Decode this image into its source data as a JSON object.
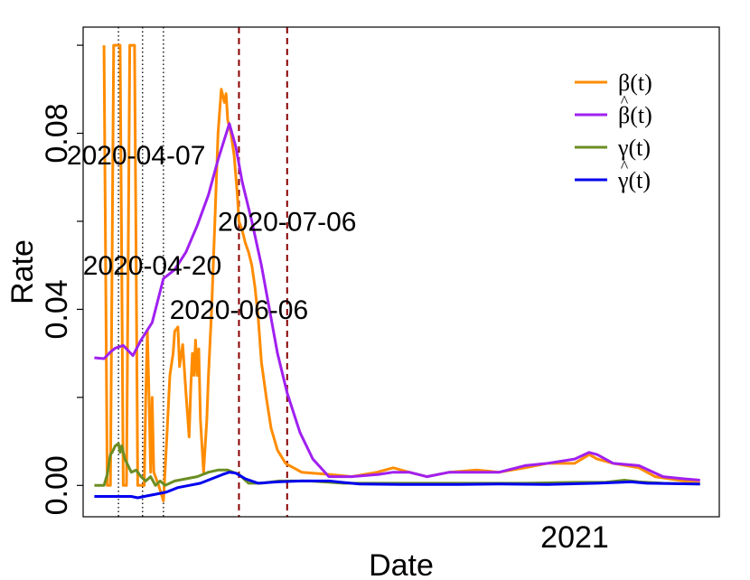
{
  "chart_data": {
    "type": "line",
    "xlabel": "Date",
    "ylabel": "Rate",
    "xlim": [
      "2020-03-01",
      "2021-04-01"
    ],
    "ylim": [
      -0.003,
      0.1
    ],
    "x_tick_labels": [
      {
        "date": "2021-01-01",
        "label": "2021"
      }
    ],
    "y_ticks": [
      0.0,
      0.04,
      0.08
    ],
    "y_tick_labels": [
      "0.00",
      "0.04",
      "0.08"
    ],
    "y_minor_ticks": [
      0.02,
      0.06,
      0.1
    ],
    "grid": false,
    "legend": {
      "position": "top-right",
      "entries": [
        {
          "label": "β(t)",
          "hat": false,
          "color": "#FF8C00"
        },
        {
          "label": "β(t)",
          "hat": true,
          "color": "#A020F0"
        },
        {
          "label": "γ(t)",
          "hat": false,
          "color": "#6B8E23"
        },
        {
          "label": "γ(t)",
          "hat": true,
          "color": "#0000EE"
        }
      ]
    },
    "vlines": [
      {
        "date": "2020-03-23",
        "color": "#000000",
        "style": "dotted"
      },
      {
        "date": "2020-04-07",
        "color": "#000000",
        "style": "dotted"
      },
      {
        "date": "2020-04-20",
        "color": "#000000",
        "style": "dotted"
      },
      {
        "date": "2020-06-06",
        "color": "#8B0000",
        "style": "dashed"
      },
      {
        "date": "2020-07-06",
        "color": "#8B0000",
        "style": "dashed"
      }
    ],
    "annotations": [
      {
        "text": "2020-04-07",
        "date": "2020-04-03",
        "value": 0.0745,
        "color": "#000000"
      },
      {
        "text": "2020-04-20",
        "date": "2020-04-13",
        "value": 0.0495,
        "color": "#000000"
      },
      {
        "text": "2020-07-06",
        "date": "2020-07-06",
        "value": 0.0595,
        "color": "#8B0000"
      },
      {
        "text": "2020-06-06",
        "date": "2020-06-06",
        "value": 0.0395,
        "color": "#8B0000"
      }
    ],
    "series": [
      {
        "color": "#FF8C00",
        "width": 3,
        "points": [
          [
            "2020-03-14",
            0.1
          ],
          [
            "2020-03-15",
            0.05
          ],
          [
            "2020-03-16",
            0.0
          ],
          [
            "2020-03-18",
            0.0
          ],
          [
            "2020-03-19",
            0.05
          ],
          [
            "2020-03-20",
            0.1
          ],
          [
            "2020-03-24",
            0.1
          ],
          [
            "2020-03-25",
            0.05
          ],
          [
            "2020-03-26",
            0.0
          ],
          [
            "2020-03-28",
            0.0
          ],
          [
            "2020-03-29",
            0.05
          ],
          [
            "2020-03-30",
            0.1
          ],
          [
            "2020-04-02",
            0.1
          ],
          [
            "2020-04-03",
            0.05
          ],
          [
            "2020-04-04",
            0.0
          ],
          [
            "2020-04-08",
            0.0
          ],
          [
            "2020-04-09",
            0.02
          ],
          [
            "2020-04-10",
            0.035
          ],
          [
            "2020-04-11",
            0.02
          ],
          [
            "2020-04-12",
            0.003
          ],
          [
            "2020-04-13",
            0.02
          ],
          [
            "2020-04-14",
            0.003
          ],
          [
            "2020-04-17",
            0.0
          ],
          [
            "2020-04-20",
            -0.0035
          ],
          [
            "2020-04-22",
            0.01
          ],
          [
            "2020-04-24",
            0.025
          ],
          [
            "2020-04-26",
            0.03
          ],
          [
            "2020-04-27",
            0.035
          ],
          [
            "2020-04-29",
            0.036
          ],
          [
            "2020-04-30",
            0.027
          ],
          [
            "2020-05-02",
            0.032
          ],
          [
            "2020-05-04",
            0.021
          ],
          [
            "2020-05-06",
            0.011
          ],
          [
            "2020-05-07",
            0.022
          ],
          [
            "2020-05-08",
            0.03
          ],
          [
            "2020-05-09",
            0.025
          ],
          [
            "2020-05-10",
            0.033
          ],
          [
            "2020-05-11",
            0.025
          ],
          [
            "2020-05-12",
            0.031
          ],
          [
            "2020-05-13",
            0.015
          ],
          [
            "2020-05-15",
            0.003
          ],
          [
            "2020-05-17",
            0.015
          ],
          [
            "2020-05-18",
            0.025
          ],
          [
            "2020-05-20",
            0.04
          ],
          [
            "2020-05-22",
            0.06
          ],
          [
            "2020-05-24",
            0.08
          ],
          [
            "2020-05-26",
            0.09
          ],
          [
            "2020-05-28",
            0.087
          ],
          [
            "2020-05-29",
            0.089
          ],
          [
            "2020-05-30",
            0.083
          ],
          [
            "2020-06-01",
            0.08
          ],
          [
            "2020-06-03",
            0.075
          ],
          [
            "2020-06-05",
            0.066
          ],
          [
            "2020-06-06",
            0.06
          ],
          [
            "2020-06-08",
            0.058
          ],
          [
            "2020-06-10",
            0.055
          ],
          [
            "2020-06-12",
            0.053
          ],
          [
            "2020-06-14",
            0.05
          ],
          [
            "2020-06-16",
            0.045
          ],
          [
            "2020-06-18",
            0.038
          ],
          [
            "2020-06-20",
            0.028
          ],
          [
            "2020-06-23",
            0.02
          ],
          [
            "2020-06-26",
            0.013
          ],
          [
            "2020-06-30",
            0.008
          ],
          [
            "2020-07-05",
            0.005
          ],
          [
            "2020-07-15",
            0.003
          ],
          [
            "2020-08-01",
            0.0025
          ],
          [
            "2020-08-15",
            0.002
          ],
          [
            "2020-08-31",
            0.003
          ],
          [
            "2020-09-10",
            0.004
          ],
          [
            "2020-09-20",
            0.003
          ],
          [
            "2020-10-01",
            0.002
          ],
          [
            "2020-10-15",
            0.003
          ],
          [
            "2020-11-01",
            0.0035
          ],
          [
            "2020-11-15",
            0.003
          ],
          [
            "2020-12-01",
            0.004
          ],
          [
            "2020-12-15",
            0.005
          ],
          [
            "2021-01-01",
            0.005
          ],
          [
            "2021-01-10",
            0.007
          ],
          [
            "2021-01-15",
            0.006
          ],
          [
            "2021-01-25",
            0.005
          ],
          [
            "2021-02-10",
            0.004
          ],
          [
            "2021-02-20",
            0.002
          ],
          [
            "2021-03-10",
            0.001
          ],
          [
            "2021-03-20",
            0.001
          ]
        ]
      },
      {
        "color": "#A020F0",
        "width": 3,
        "points": [
          [
            "2020-03-08",
            0.029
          ],
          [
            "2020-03-14",
            0.0288
          ],
          [
            "2020-03-18",
            0.0303
          ],
          [
            "2020-03-21",
            0.0312
          ],
          [
            "2020-03-26",
            0.0318
          ],
          [
            "2020-04-01",
            0.0295
          ],
          [
            "2020-04-06",
            0.033
          ],
          [
            "2020-04-13",
            0.037
          ],
          [
            "2020-04-20",
            0.047
          ],
          [
            "2020-04-27",
            0.049
          ],
          [
            "2020-05-04",
            0.053
          ],
          [
            "2020-05-11",
            0.059
          ],
          [
            "2020-05-18",
            0.066
          ],
          [
            "2020-05-24",
            0.074
          ],
          [
            "2020-05-30",
            0.081
          ],
          [
            "2020-05-31",
            0.0822
          ],
          [
            "2020-06-04",
            0.077
          ],
          [
            "2020-06-08",
            0.069
          ],
          [
            "2020-06-14",
            0.06
          ],
          [
            "2020-06-20",
            0.05
          ],
          [
            "2020-06-25",
            0.04
          ],
          [
            "2020-06-30",
            0.03
          ],
          [
            "2020-07-06",
            0.021
          ],
          [
            "2020-07-14",
            0.012
          ],
          [
            "2020-07-22",
            0.006
          ],
          [
            "2020-08-01",
            0.002
          ],
          [
            "2020-08-15",
            0.002
          ],
          [
            "2020-09-01",
            0.0025
          ],
          [
            "2020-09-10",
            0.003
          ],
          [
            "2020-09-20",
            0.003
          ],
          [
            "2020-10-01",
            0.002
          ],
          [
            "2020-10-15",
            0.003
          ],
          [
            "2020-11-01",
            0.003
          ],
          [
            "2020-11-15",
            0.003
          ],
          [
            "2020-12-01",
            0.0045
          ],
          [
            "2020-12-15",
            0.005
          ],
          [
            "2021-01-01",
            0.006
          ],
          [
            "2021-01-10",
            0.0075
          ],
          [
            "2021-01-15",
            0.007
          ],
          [
            "2021-01-25",
            0.005
          ],
          [
            "2021-02-10",
            0.0045
          ],
          [
            "2021-02-25",
            0.002
          ],
          [
            "2021-03-10",
            0.0015
          ],
          [
            "2021-03-20",
            0.0012
          ]
        ]
      },
      {
        "color": "#6B8E23",
        "width": 3,
        "points": [
          [
            "2020-03-08",
            0.0
          ],
          [
            "2020-03-14",
            0.0
          ],
          [
            "2020-03-16",
            0.0025
          ],
          [
            "2020-03-18",
            0.007
          ],
          [
            "2020-03-19",
            0.0075
          ],
          [
            "2020-03-21",
            0.009
          ],
          [
            "2020-03-23",
            0.0095
          ],
          [
            "2020-03-24",
            0.0075
          ],
          [
            "2020-03-25",
            0.009
          ],
          [
            "2020-03-27",
            0.006
          ],
          [
            "2020-03-29",
            0.0045
          ],
          [
            "2020-03-31",
            0.003
          ],
          [
            "2020-04-03",
            0.0035
          ],
          [
            "2020-04-06",
            0.002
          ],
          [
            "2020-04-09",
            0.001
          ],
          [
            "2020-04-12",
            0.002
          ],
          [
            "2020-04-15",
            0.0
          ],
          [
            "2020-04-18",
            0.001
          ],
          [
            "2020-04-21",
            0.0
          ],
          [
            "2020-04-27",
            0.001
          ],
          [
            "2020-05-04",
            0.0015
          ],
          [
            "2020-05-11",
            0.002
          ],
          [
            "2020-05-18",
            0.003
          ],
          [
            "2020-05-24",
            0.0035
          ],
          [
            "2020-05-30",
            0.0035
          ],
          [
            "2020-06-06",
            0.0025
          ],
          [
            "2020-06-12",
            0.0005
          ],
          [
            "2020-06-20",
            0.0005
          ],
          [
            "2020-07-01",
            0.001
          ],
          [
            "2020-07-20",
            0.001
          ],
          [
            "2020-08-10",
            0.0005
          ],
          [
            "2020-09-01",
            0.0005
          ],
          [
            "2020-10-01",
            0.0005
          ],
          [
            "2020-11-01",
            0.0005
          ],
          [
            "2020-12-01",
            0.0005
          ],
          [
            "2021-01-01",
            0.0007
          ],
          [
            "2021-01-20",
            0.0007
          ],
          [
            "2021-02-01",
            0.0012
          ],
          [
            "2021-02-10",
            0.0008
          ],
          [
            "2021-02-25",
            0.0005
          ],
          [
            "2021-03-20",
            0.0003
          ]
        ]
      },
      {
        "color": "#0000EE",
        "width": 3,
        "points": [
          [
            "2020-03-08",
            -0.0025
          ],
          [
            "2020-03-20",
            -0.0025
          ],
          [
            "2020-03-31",
            -0.0025
          ],
          [
            "2020-04-04",
            -0.0028
          ],
          [
            "2020-04-08",
            -0.0025
          ],
          [
            "2020-04-15",
            -0.002
          ],
          [
            "2020-04-22",
            -0.0015
          ],
          [
            "2020-04-29",
            -0.0005
          ],
          [
            "2020-05-06",
            0.0
          ],
          [
            "2020-05-13",
            0.0005
          ],
          [
            "2020-05-20",
            0.0015
          ],
          [
            "2020-05-27",
            0.0025
          ],
          [
            "2020-05-31",
            0.003
          ],
          [
            "2020-06-04",
            0.0028
          ],
          [
            "2020-06-10",
            0.0015
          ],
          [
            "2020-06-18",
            0.0005
          ],
          [
            "2020-06-30",
            0.0008
          ],
          [
            "2020-07-15",
            0.001
          ],
          [
            "2020-08-01",
            0.001
          ],
          [
            "2020-08-20",
            0.0003
          ],
          [
            "2020-09-15",
            0.0002
          ],
          [
            "2020-10-15",
            0.0002
          ],
          [
            "2020-11-15",
            0.0003
          ],
          [
            "2020-12-15",
            0.0002
          ],
          [
            "2021-01-15",
            0.0005
          ],
          [
            "2021-02-05",
            0.0008
          ],
          [
            "2021-02-15",
            0.0005
          ],
          [
            "2021-03-20",
            0.0003
          ]
        ]
      }
    ]
  }
}
